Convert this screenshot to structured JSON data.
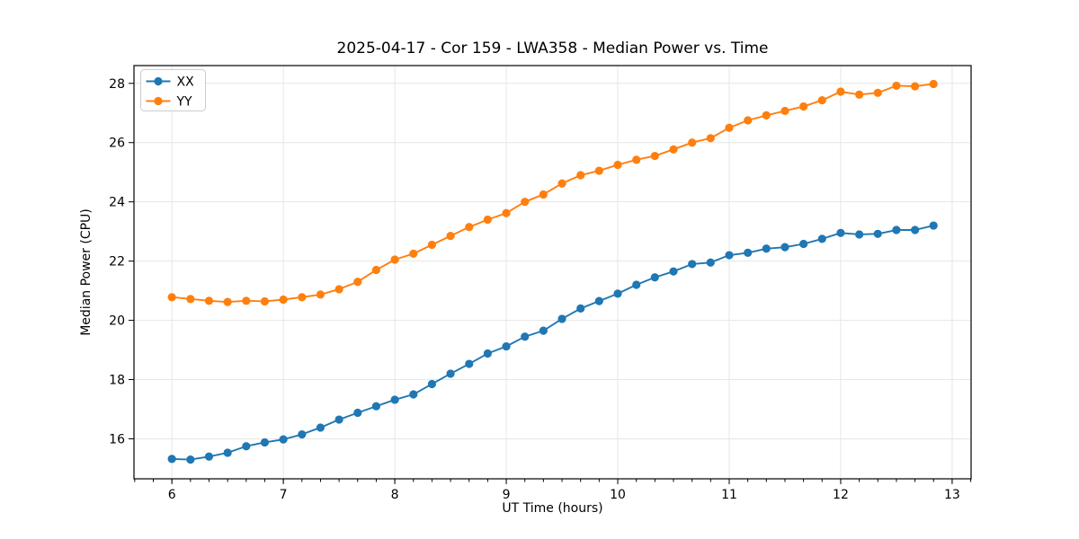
{
  "chart_data": {
    "type": "line",
    "title": "2025-04-17 - Cor 159 - LWA358 - Median Power vs. Time",
    "xlabel": "UT Time (hours)",
    "ylabel": "Median Power (CPU)",
    "xlim": [
      5.66,
      13.17
    ],
    "ylim": [
      14.65,
      28.6
    ],
    "xticks": [
      6,
      7,
      8,
      9,
      10,
      11,
      12,
      13
    ],
    "yticks": [
      16,
      18,
      20,
      22,
      24,
      26,
      28
    ],
    "x_minor_step": 0.1666667,
    "grid": true,
    "legend_position": "upper left",
    "x": [
      6.0,
      6.167,
      6.333,
      6.5,
      6.667,
      6.833,
      7.0,
      7.167,
      7.333,
      7.5,
      7.667,
      7.833,
      8.0,
      8.167,
      8.333,
      8.5,
      8.667,
      8.833,
      9.0,
      9.167,
      9.333,
      9.5,
      9.667,
      9.833,
      10.0,
      10.167,
      10.333,
      10.5,
      10.667,
      10.833,
      11.0,
      11.167,
      11.333,
      11.5,
      11.667,
      11.833,
      12.0,
      12.167,
      12.333,
      12.5,
      12.667,
      12.833
    ],
    "series": [
      {
        "name": "XX",
        "color": "#1f77b4",
        "values": [
          15.32,
          15.3,
          15.4,
          15.53,
          15.75,
          15.88,
          15.98,
          16.15,
          16.38,
          16.65,
          16.88,
          17.1,
          17.32,
          17.5,
          17.85,
          18.2,
          18.53,
          18.88,
          19.12,
          19.45,
          19.65,
          20.05,
          20.4,
          20.65,
          20.9,
          21.2,
          21.45,
          21.65,
          21.9,
          21.95,
          22.2,
          22.28,
          22.42,
          22.47,
          22.58,
          22.75,
          22.95,
          22.9,
          22.92,
          23.05,
          23.05,
          23.2
        ]
      },
      {
        "name": "YY",
        "color": "#ff7f0e",
        "values": [
          20.78,
          20.72,
          20.66,
          20.62,
          20.66,
          20.64,
          20.7,
          20.78,
          20.87,
          21.05,
          21.3,
          21.7,
          22.05,
          22.25,
          22.55,
          22.85,
          23.15,
          23.4,
          23.62,
          24.0,
          24.25,
          24.62,
          24.9,
          25.05,
          25.25,
          25.42,
          25.55,
          25.77,
          26.0,
          26.15,
          26.5,
          26.75,
          26.92,
          27.07,
          27.22,
          27.43,
          27.72,
          27.62,
          27.68,
          27.92,
          27.9,
          27.98
        ]
      }
    ]
  },
  "colors": {
    "background": "#ffffff",
    "axis": "#000000",
    "grid": "#e6e6e6",
    "text": "#000000",
    "legend_border": "#cccccc",
    "legend_fill": "#ffffff"
  }
}
